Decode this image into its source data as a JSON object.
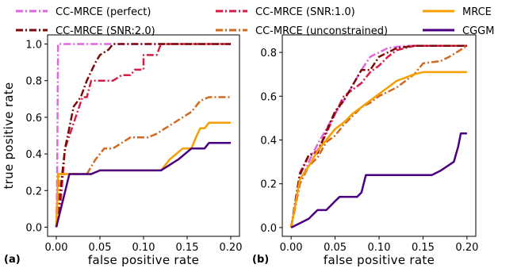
{
  "legend": [
    {
      "key": "perfect",
      "label": "CC-MRCE (perfect)"
    },
    {
      "key": "snr1",
      "label": "CC-MRCE (SNR:1.0)"
    },
    {
      "key": "mrce",
      "label": "MRCE"
    },
    {
      "key": "snr2",
      "label": "CC-MRCE (SNR:2.0)"
    },
    {
      "key": "unconstrained",
      "label": "CC-MRCE (unconstrained)"
    },
    {
      "key": "cggm",
      "label": "CGGM"
    }
  ],
  "styles": {
    "perfect": {
      "color": "#e066e0",
      "dash": "dashdot"
    },
    "snr1": {
      "color": "#d81b45",
      "dash": "dashdot"
    },
    "snr2": {
      "color": "#7a0a0a",
      "dash": "dashdot"
    },
    "unconstrained": {
      "color": "#d2691e",
      "dash": "dashdot"
    },
    "mrce": {
      "color": "#f5a000",
      "dash": "solid"
    },
    "cggm": {
      "color": "#4b0082",
      "dash": "solid"
    }
  },
  "chart_data": [
    {
      "type": "line",
      "panel_label": "(a)",
      "xlabel": "false positive rate",
      "ylabel": "true positive rate",
      "xlim": [
        -0.01,
        0.21
      ],
      "ylim": [
        -0.05,
        1.05
      ],
      "xticks": [
        "0.00",
        "0.05",
        "0.10",
        "0.15",
        "0.20"
      ],
      "yticks": [
        "0.0",
        "0.2",
        "0.4",
        "0.6",
        "0.8",
        "1.0"
      ],
      "series": [
        {
          "key": "perfect",
          "points": [
            [
              0,
              0
            ],
            [
              0.001,
              0.3
            ],
            [
              0.002,
              1.0
            ],
            [
              0.2,
              1.0
            ]
          ]
        },
        {
          "key": "snr1",
          "points": [
            [
              0,
              0
            ],
            [
              0.005,
              0.14
            ],
            [
              0.01,
              0.43
            ],
            [
              0.02,
              0.57
            ],
            [
              0.03,
              0.71
            ],
            [
              0.035,
              0.71
            ],
            [
              0.04,
              0.8
            ],
            [
              0.05,
              0.8
            ],
            [
              0.055,
              0.8
            ],
            [
              0.065,
              0.8
            ],
            [
              0.075,
              0.83
            ],
            [
              0.085,
              0.83
            ],
            [
              0.09,
              0.86
            ],
            [
              0.1,
              0.86
            ],
            [
              0.1,
              0.94
            ],
            [
              0.115,
              0.94
            ],
            [
              0.12,
              1.0
            ],
            [
              0.2,
              1.0
            ]
          ]
        },
        {
          "key": "snr2",
          "points": [
            [
              0,
              0
            ],
            [
              0.01,
              0.43
            ],
            [
              0.02,
              0.66
            ],
            [
              0.028,
              0.71
            ],
            [
              0.035,
              0.8
            ],
            [
              0.045,
              0.9
            ],
            [
              0.05,
              0.94
            ],
            [
              0.06,
              0.97
            ],
            [
              0.065,
              1.0
            ],
            [
              0.2,
              1.0
            ]
          ]
        },
        {
          "key": "unconstrained",
          "points": [
            [
              0,
              0
            ],
            [
              0.002,
              0.14
            ],
            [
              0.003,
              0.29
            ],
            [
              0.035,
              0.29
            ],
            [
              0.045,
              0.37
            ],
            [
              0.055,
              0.43
            ],
            [
              0.065,
              0.43
            ],
            [
              0.085,
              0.49
            ],
            [
              0.095,
              0.49
            ],
            [
              0.105,
              0.49
            ],
            [
              0.115,
              0.51
            ],
            [
              0.135,
              0.57
            ],
            [
              0.145,
              0.6
            ],
            [
              0.155,
              0.63
            ],
            [
              0.165,
              0.69
            ],
            [
              0.175,
              0.71
            ],
            [
              0.2,
              0.71
            ]
          ]
        },
        {
          "key": "mrce",
          "points": [
            [
              0,
              0
            ],
            [
              0.002,
              0.29
            ],
            [
              0.03,
              0.29
            ],
            [
              0.04,
              0.29
            ],
            [
              0.05,
              0.31
            ],
            [
              0.115,
              0.31
            ],
            [
              0.12,
              0.31
            ],
            [
              0.13,
              0.37
            ],
            [
              0.145,
              0.43
            ],
            [
              0.155,
              0.43
            ],
            [
              0.16,
              0.49
            ],
            [
              0.165,
              0.54
            ],
            [
              0.17,
              0.54
            ],
            [
              0.175,
              0.57
            ],
            [
              0.2,
              0.57
            ]
          ]
        },
        {
          "key": "cggm",
          "points": [
            [
              0,
              0
            ],
            [
              0.015,
              0.29
            ],
            [
              0.04,
              0.29
            ],
            [
              0.05,
              0.31
            ],
            [
              0.12,
              0.31
            ],
            [
              0.13,
              0.34
            ],
            [
              0.14,
              0.37
            ],
            [
              0.155,
              0.43
            ],
            [
              0.17,
              0.43
            ],
            [
              0.175,
              0.46
            ],
            [
              0.2,
              0.46
            ]
          ]
        }
      ]
    },
    {
      "type": "line",
      "panel_label": "(b)",
      "xlabel": "false positive rate",
      "ylabel": "",
      "xlim": [
        -0.01,
        0.21
      ],
      "ylim": [
        -0.04,
        0.88
      ],
      "xticks": [
        "0.00",
        "0.05",
        "0.10",
        "0.15",
        "0.20"
      ],
      "yticks": [
        "0.0",
        "0.2",
        "0.4",
        "0.6",
        "0.8"
      ],
      "series": [
        {
          "key": "perfect",
          "points": [
            [
              0,
              0
            ],
            [
              0.01,
              0.2
            ],
            [
              0.02,
              0.3
            ],
            [
              0.03,
              0.38
            ],
            [
              0.04,
              0.45
            ],
            [
              0.05,
              0.52
            ],
            [
              0.06,
              0.58
            ],
            [
              0.07,
              0.65
            ],
            [
              0.08,
              0.72
            ],
            [
              0.09,
              0.78
            ],
            [
              0.1,
              0.8
            ],
            [
              0.11,
              0.82
            ],
            [
              0.13,
              0.83
            ],
            [
              0.2,
              0.83
            ]
          ]
        },
        {
          "key": "snr1",
          "points": [
            [
              0,
              0
            ],
            [
              0.01,
              0.25
            ],
            [
              0.02,
              0.33
            ],
            [
              0.03,
              0.35
            ],
            [
              0.04,
              0.43
            ],
            [
              0.05,
              0.52
            ],
            [
              0.06,
              0.6
            ],
            [
              0.07,
              0.63
            ],
            [
              0.08,
              0.66
            ],
            [
              0.09,
              0.71
            ],
            [
              0.1,
              0.74
            ],
            [
              0.11,
              0.78
            ],
            [
              0.12,
              0.81
            ],
            [
              0.13,
              0.82
            ],
            [
              0.14,
              0.83
            ],
            [
              0.2,
              0.83
            ]
          ]
        },
        {
          "key": "snr2",
          "points": [
            [
              0,
              0
            ],
            [
              0.01,
              0.24
            ],
            [
              0.02,
              0.33
            ],
            [
              0.03,
              0.34
            ],
            [
              0.04,
              0.44
            ],
            [
              0.05,
              0.53
            ],
            [
              0.06,
              0.58
            ],
            [
              0.07,
              0.65
            ],
            [
              0.08,
              0.72
            ],
            [
              0.09,
              0.72
            ],
            [
              0.1,
              0.78
            ],
            [
              0.11,
              0.8
            ],
            [
              0.12,
              0.82
            ],
            [
              0.14,
              0.83
            ],
            [
              0.2,
              0.83
            ]
          ]
        },
        {
          "key": "unconstrained",
          "points": [
            [
              0,
              0
            ],
            [
              0.01,
              0.2
            ],
            [
              0.02,
              0.28
            ],
            [
              0.03,
              0.32
            ],
            [
              0.04,
              0.39
            ],
            [
              0.05,
              0.42
            ],
            [
              0.06,
              0.47
            ],
            [
              0.07,
              0.51
            ],
            [
              0.08,
              0.55
            ],
            [
              0.09,
              0.57
            ],
            [
              0.1,
              0.6
            ],
            [
              0.11,
              0.62
            ],
            [
              0.12,
              0.64
            ],
            [
              0.13,
              0.67
            ],
            [
              0.14,
              0.7
            ],
            [
              0.15,
              0.75
            ],
            [
              0.17,
              0.76
            ],
            [
              0.18,
              0.78
            ],
            [
              0.2,
              0.83
            ]
          ]
        },
        {
          "key": "mrce",
          "points": [
            [
              0,
              0
            ],
            [
              0.01,
              0.22
            ],
            [
              0.02,
              0.28
            ],
            [
              0.03,
              0.35
            ],
            [
              0.04,
              0.4
            ],
            [
              0.05,
              0.45
            ],
            [
              0.06,
              0.48
            ],
            [
              0.07,
              0.52
            ],
            [
              0.08,
              0.55
            ],
            [
              0.09,
              0.58
            ],
            [
              0.1,
              0.61
            ],
            [
              0.12,
              0.67
            ],
            [
              0.14,
              0.7
            ],
            [
              0.15,
              0.71
            ],
            [
              0.2,
              0.71
            ]
          ]
        },
        {
          "key": "cggm",
          "points": [
            [
              0,
              0
            ],
            [
              0.02,
              0.04
            ],
            [
              0.03,
              0.08
            ],
            [
              0.04,
              0.08
            ],
            [
              0.05,
              0.12
            ],
            [
              0.055,
              0.14
            ],
            [
              0.075,
              0.14
            ],
            [
              0.08,
              0.16
            ],
            [
              0.085,
              0.24
            ],
            [
              0.15,
              0.24
            ],
            [
              0.16,
              0.24
            ],
            [
              0.17,
              0.26
            ],
            [
              0.185,
              0.3
            ],
            [
              0.19,
              0.37
            ],
            [
              0.193,
              0.43
            ],
            [
              0.2,
              0.43
            ]
          ]
        }
      ]
    }
  ]
}
